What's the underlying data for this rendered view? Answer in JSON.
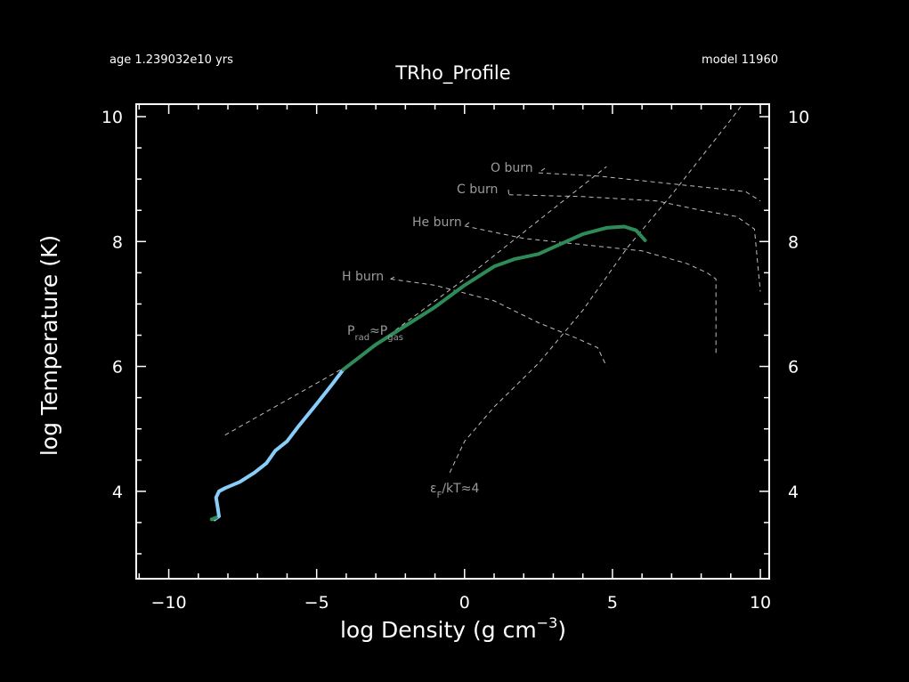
{
  "header": {
    "age": "age 1.239032e10 yrs",
    "model": "model 11960"
  },
  "chart_data": {
    "type": "line",
    "title": "TRho_Profile",
    "xlabel": "log Density (g cm",
    "xlabel_sup": "−3",
    "xlabel_close": ")",
    "ylabel": "log Temperature (K)",
    "xlim": [
      -11.1,
      10.3
    ],
    "ylim": [
      2.6,
      10.2
    ],
    "x_ticks": [
      -10,
      -5,
      0,
      5,
      10
    ],
    "x_tick_labels": [
      "−10",
      "−5",
      "0",
      "5",
      "10"
    ],
    "y_ticks": [
      4,
      6,
      8,
      10
    ],
    "y_tick_labels": [
      "4",
      "6",
      "8",
      "10"
    ],
    "grid": false,
    "series": [
      {
        "color": "#87cefa",
        "x": [
          -8.45,
          -8.3,
          -8.35,
          -8.4,
          -8.3,
          -8.1,
          -7.6,
          -7.1,
          -6.7,
          -6.4,
          -6.0,
          -5.6,
          -5.0,
          -4.5,
          -4.1
        ],
        "y": [
          3.55,
          3.6,
          3.75,
          3.9,
          4.0,
          4.05,
          4.15,
          4.3,
          4.45,
          4.65,
          4.8,
          5.05,
          5.4,
          5.7,
          5.95
        ]
      },
      {
        "color": "#2e8b57",
        "x": [
          -8.55,
          -8.4
        ],
        "y": [
          3.55,
          3.58
        ]
      },
      {
        "color": "#2e8b57",
        "x": [
          -4.1,
          -3.0,
          -2.0,
          -1.0,
          0.0,
          1.0,
          1.7,
          2.5,
          3.2,
          4.0,
          4.8,
          5.4,
          5.8,
          6.1
        ],
        "y": [
          5.95,
          6.35,
          6.65,
          6.95,
          7.3,
          7.6,
          7.72,
          7.8,
          7.95,
          8.12,
          8.22,
          8.24,
          8.18,
          8.02
        ]
      }
    ],
    "reference_lines": [
      {
        "label": "O burn",
        "x": [
          2.5,
          4.5,
          6.5,
          8.5,
          9.5,
          10.0
        ],
        "y": [
          9.1,
          9.05,
          8.95,
          8.85,
          8.8,
          8.65
        ]
      },
      {
        "label": "C burn",
        "x": [
          1.5,
          4.0,
          6.5,
          8.0,
          9.2,
          9.8,
          10.0
        ],
        "y": [
          8.75,
          8.72,
          8.65,
          8.5,
          8.4,
          8.2,
          7.2
        ]
      },
      {
        "label": "He burn",
        "x": [
          0.0,
          2.0,
          4.0,
          6.0,
          7.5,
          8.2,
          8.5,
          8.5
        ],
        "y": [
          8.25,
          8.05,
          7.95,
          7.85,
          7.65,
          7.5,
          7.4,
          6.2
        ]
      },
      {
        "label": "H burn",
        "x": [
          -2.5,
          -1.0,
          1.0,
          2.5,
          3.8,
          4.5,
          4.8
        ],
        "y": [
          7.4,
          7.3,
          7.05,
          6.7,
          6.45,
          6.3,
          6.0
        ]
      },
      {
        "label": "",
        "x": [
          -8.1,
          -4.0,
          0.0,
          4.8
        ],
        "y": [
          4.9,
          6.0,
          7.4,
          9.2
        ]
      },
      {
        "label": "",
        "x": [
          -0.5,
          0.0,
          1.0,
          2.5,
          4.0,
          5.5,
          7.0,
          8.0,
          9.0,
          9.4
        ],
        "y": [
          4.3,
          4.8,
          5.35,
          6.05,
          6.9,
          7.9,
          8.75,
          9.35,
          9.95,
          10.2
        ]
      }
    ],
    "annotations": {
      "prad_main": "P",
      "prad_sub1": "rad",
      "prad_mid": "≈P",
      "prad_sub2": "gas",
      "ef_main": "ε",
      "ef_sub": "F",
      "ef_rest": "/kT≈4"
    }
  }
}
